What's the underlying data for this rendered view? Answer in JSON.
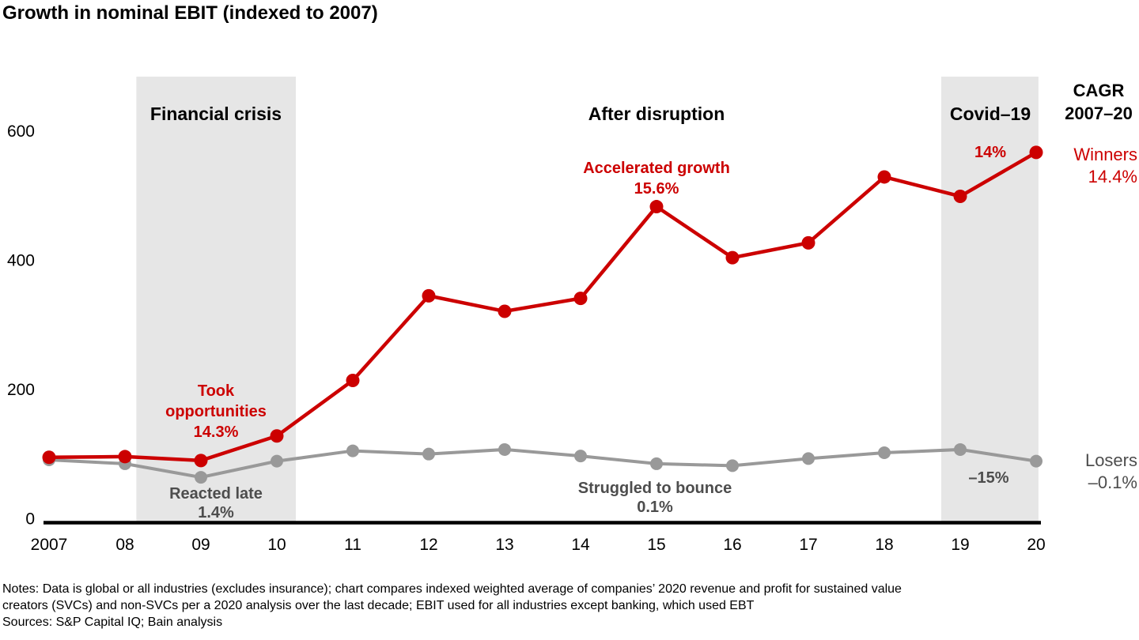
{
  "title": "Growth in nominal EBIT (indexed to 2007)",
  "chart_data": {
    "type": "line",
    "categories": [
      2007,
      2008,
      2009,
      2010,
      2011,
      2012,
      2013,
      2014,
      2015,
      2016,
      2017,
      2018,
      2019,
      2020
    ],
    "x_tick_labels": [
      "2007",
      "08",
      "09",
      "10",
      "11",
      "12",
      "13",
      "14",
      "15",
      "16",
      "17",
      "18",
      "19",
      "20"
    ],
    "yticks": [
      0,
      200,
      400,
      600
    ],
    "ylim": [
      0,
      690
    ],
    "grid": false,
    "series": [
      {
        "name": "Losers",
        "cagr": "–0.1%",
        "color": "#999999",
        "values": [
          96,
          90,
          69,
          94,
          110,
          105,
          112,
          102,
          90,
          87,
          98,
          107,
          112,
          94
        ]
      },
      {
        "name": "Winners",
        "cagr": "14.4%",
        "color": "#cc0000",
        "values": [
          100,
          101,
          95,
          133,
          219,
          350,
          326,
          346,
          488,
          409,
          432,
          534,
          504,
          572
        ]
      }
    ],
    "regions": [
      {
        "label": "Financial crisis",
        "from": 2008.15,
        "to": 2010.25,
        "fill": "#e6e6e6"
      },
      {
        "label": "Covid–19",
        "from": 2018.75,
        "to": 2020.03,
        "fill": "#e6e6e6"
      }
    ],
    "period_label": "After disruption"
  },
  "cagr_header": {
    "line1": "CAGR",
    "line2": "2007–20"
  },
  "annotations": {
    "took": {
      "label": "Took opportunities",
      "value": "14.3%"
    },
    "reacted": {
      "label": "Reacted late",
      "value": "1.4%"
    },
    "accelerated": {
      "label": "Accelerated growth",
      "value": "15.6%"
    },
    "struggled": {
      "label": "Struggled to bounce",
      "value": "0.1%"
    },
    "covid_winners_cagr": "14%",
    "covid_losers_cagr": "–15%"
  },
  "notes": {
    "line1": "Notes: Data is global or all industries (excludes insurance); chart compares indexed weighted average of companies’ 2020 revenue and profit for sustained value",
    "line2": "creators (SVCs) and non-SVCs per a 2020 analysis over the last decade; EBIT used for all industries except banking, which used EBT",
    "sources": "Sources: S&P Capital IQ; Bain analysis"
  },
  "colors": {
    "winners": "#cc0000",
    "losers": "#999999",
    "band": "#e6e6e6",
    "dark_gray_text": "#4d4d4d",
    "axis": "#000000"
  }
}
